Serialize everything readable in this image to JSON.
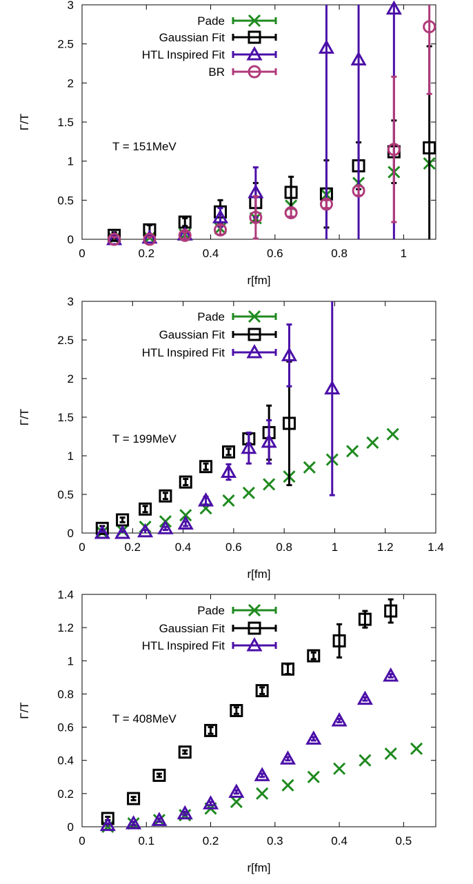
{
  "colors": {
    "pade": "#1f8a1f",
    "gauss": "#000000",
    "htl": "#4b0fa8",
    "br": "#b03a7a"
  },
  "chart_data": [
    {
      "type": "scatter",
      "annotation": "T = 151MeV",
      "xlabel": "r[fm]",
      "ylabel": "Γ/T",
      "xlim": [
        0,
        1.1
      ],
      "ylim": [
        0,
        3
      ],
      "xticks": [
        0,
        0.2,
        0.4,
        0.6,
        0.8,
        1
      ],
      "xtick_labels": [
        "0",
        "0.2",
        "0.4",
        "0.6",
        "0.8",
        "1"
      ],
      "yticks": [
        0,
        0.5,
        1,
        1.5,
        2,
        2.5,
        3
      ],
      "ytick_labels": [
        "0",
        "0.5",
        "1",
        "1.5",
        "2",
        "2.5",
        "3"
      ],
      "legend": "top-left",
      "series": [
        {
          "name": "Pade",
          "marker": "x",
          "color": "#1f8a1f",
          "points": [
            [
              0.1,
              0.01
            ],
            [
              0.21,
              0.02
            ],
            [
              0.32,
              0.06
            ],
            [
              0.43,
              0.14
            ],
            [
              0.54,
              0.27
            ],
            [
              0.65,
              0.43
            ],
            [
              0.76,
              0.57
            ],
            [
              0.86,
              0.72
            ],
            [
              0.97,
              0.86
            ],
            [
              1.08,
              0.97
            ]
          ]
        },
        {
          "name": "Gaussian Fit",
          "marker": "square",
          "color": "#000000",
          "points": [
            [
              0.1,
              0.05,
              0.04
            ],
            [
              0.21,
              0.12,
              0.06
            ],
            [
              0.32,
              0.22,
              0.05
            ],
            [
              0.43,
              0.35,
              0.15
            ],
            [
              0.54,
              0.47,
              0.25
            ],
            [
              0.65,
              0.6,
              0.2
            ],
            [
              0.76,
              0.58,
              0.43
            ],
            [
              0.86,
              0.94,
              0.3
            ],
            [
              0.97,
              1.12,
              0.4
            ],
            [
              1.08,
              1.17,
              1.3
            ]
          ]
        },
        {
          "name": "HTL Inspired Fit",
          "marker": "triangle",
          "color": "#4b0fa8",
          "points": [
            [
              0.1,
              0.0,
              0.03
            ],
            [
              0.21,
              0.02,
              0.04
            ],
            [
              0.32,
              0.06,
              0.05
            ],
            [
              0.43,
              0.28,
              0.12
            ],
            [
              0.54,
              0.6,
              0.32
            ],
            [
              0.76,
              2.45,
              3.0
            ],
            [
              0.86,
              2.3,
              3.0
            ],
            [
              0.97,
              2.95,
              3.0
            ]
          ]
        },
        {
          "name": "BR",
          "marker": "circle",
          "color": "#b03a7a",
          "points": [
            [
              0.1,
              0.0,
              0.03
            ],
            [
              0.21,
              0.0,
              0.03
            ],
            [
              0.32,
              0.05,
              0.04
            ],
            [
              0.43,
              0.12,
              0.06
            ],
            [
              0.54,
              0.28,
              0.27
            ],
            [
              0.65,
              0.34,
              0.05
            ],
            [
              0.76,
              0.45,
              0.05
            ],
            [
              0.86,
              0.62,
              0.06
            ],
            [
              0.97,
              1.15,
              0.93
            ],
            [
              1.08,
              2.72,
              0.86
            ]
          ]
        }
      ]
    },
    {
      "type": "scatter",
      "annotation": "T = 199MeV",
      "xlabel": "r[fm]",
      "ylabel": "Γ/T",
      "xlim": [
        0,
        1.4
      ],
      "ylim": [
        0,
        3
      ],
      "xticks": [
        0,
        0.2,
        0.4,
        0.6,
        0.8,
        1,
        1.2,
        1.4
      ],
      "xtick_labels": [
        "0",
        "0.2",
        "0.4",
        "0.6",
        "0.8",
        "1",
        "1.2",
        "1.4"
      ],
      "yticks": [
        0,
        0.5,
        1,
        1.5,
        2,
        2.5,
        3
      ],
      "ytick_labels": [
        "0",
        "0.5",
        "1",
        "1.5",
        "2",
        "2.5",
        "3"
      ],
      "legend": "top-left",
      "series": [
        {
          "name": "Pade",
          "marker": "x",
          "color": "#1f8a1f",
          "points": [
            [
              0.08,
              0.01
            ],
            [
              0.16,
              0.03
            ],
            [
              0.25,
              0.08
            ],
            [
              0.33,
              0.15
            ],
            [
              0.41,
              0.23
            ],
            [
              0.49,
              0.32
            ],
            [
              0.58,
              0.42
            ],
            [
              0.66,
              0.52
            ],
            [
              0.74,
              0.63
            ],
            [
              0.82,
              0.73
            ],
            [
              0.9,
              0.85
            ],
            [
              0.99,
              0.95
            ],
            [
              1.07,
              1.06
            ],
            [
              1.15,
              1.17
            ],
            [
              1.23,
              1.28
            ]
          ]
        },
        {
          "name": "Gaussian Fit",
          "marker": "square",
          "color": "#000000",
          "points": [
            [
              0.08,
              0.06,
              0.03
            ],
            [
              0.16,
              0.17,
              0.03
            ],
            [
              0.25,
              0.31,
              0.04
            ],
            [
              0.33,
              0.48,
              0.04
            ],
            [
              0.41,
              0.66,
              0.04
            ],
            [
              0.49,
              0.86,
              0.04
            ],
            [
              0.58,
              1.05,
              0.04
            ],
            [
              0.66,
              1.22,
              0.06
            ],
            [
              0.74,
              1.3,
              0.35
            ],
            [
              0.82,
              1.42,
              0.8
            ]
          ]
        },
        {
          "name": "HTL Inspired Fit",
          "marker": "triangle",
          "color": "#4b0fa8",
          "points": [
            [
              0.08,
              0.0,
              0.02
            ],
            [
              0.16,
              0.0,
              0.02
            ],
            [
              0.25,
              0.02,
              0.02
            ],
            [
              0.33,
              0.06,
              0.02
            ],
            [
              0.41,
              0.12,
              0.03
            ],
            [
              0.49,
              0.42,
              0.05
            ],
            [
              0.58,
              0.79,
              0.1
            ],
            [
              0.66,
              1.1,
              0.2
            ],
            [
              0.74,
              1.18,
              0.28
            ],
            [
              0.82,
              2.3,
              0.4
            ],
            [
              0.99,
              1.87,
              1.38
            ]
          ]
        }
      ]
    },
    {
      "type": "scatter",
      "annotation": "T = 408MeV",
      "xlabel": "r[fm]",
      "ylabel": "Γ/T",
      "xlim": [
        0,
        0.55
      ],
      "ylim": [
        0,
        1.4
      ],
      "xticks": [
        0,
        0.1,
        0.2,
        0.3,
        0.4,
        0.5
      ],
      "xtick_labels": [
        "0",
        "0.1",
        "0.2",
        "0.3",
        "0.4",
        "0.5"
      ],
      "yticks": [
        0,
        0.2,
        0.4,
        0.6,
        0.8,
        1,
        1.2,
        1.4
      ],
      "ytick_labels": [
        "0",
        "0.2",
        "0.4",
        "0.6",
        "0.8",
        "1",
        "1.2",
        "1.4"
      ],
      "legend": "top-left",
      "series": [
        {
          "name": "Pade",
          "marker": "x",
          "color": "#1f8a1f",
          "points": [
            [
              0.04,
              0.0
            ],
            [
              0.08,
              0.02
            ],
            [
              0.12,
              0.04
            ],
            [
              0.16,
              0.07
            ],
            [
              0.2,
              0.11
            ],
            [
              0.24,
              0.15
            ],
            [
              0.28,
              0.2
            ],
            [
              0.32,
              0.25
            ],
            [
              0.36,
              0.3
            ],
            [
              0.4,
              0.35
            ],
            [
              0.44,
              0.4
            ],
            [
              0.48,
              0.44
            ],
            [
              0.52,
              0.47
            ]
          ]
        },
        {
          "name": "Gaussian Fit",
          "marker": "square",
          "color": "#000000",
          "points": [
            [
              0.04,
              0.05,
              0.01
            ],
            [
              0.08,
              0.17,
              0.01
            ],
            [
              0.12,
              0.31,
              0.01
            ],
            [
              0.16,
              0.45,
              0.01
            ],
            [
              0.2,
              0.58,
              0.02
            ],
            [
              0.24,
              0.7,
              0.02
            ],
            [
              0.28,
              0.82,
              0.02
            ],
            [
              0.32,
              0.95,
              0.03
            ],
            [
              0.36,
              1.03,
              0.02
            ],
            [
              0.4,
              1.12,
              0.1
            ],
            [
              0.44,
              1.25,
              0.05
            ],
            [
              0.48,
              1.3,
              0.07
            ]
          ]
        },
        {
          "name": "HTL Inspired Fit",
          "marker": "triangle",
          "color": "#4b0fa8",
          "points": [
            [
              0.04,
              0.01,
              0.01
            ],
            [
              0.08,
              0.02,
              0.01
            ],
            [
              0.12,
              0.04,
              0.01
            ],
            [
              0.16,
              0.08,
              0.01
            ],
            [
              0.2,
              0.14,
              0.01
            ],
            [
              0.24,
              0.21,
              0.01
            ],
            [
              0.28,
              0.31,
              0.01
            ],
            [
              0.32,
              0.41,
              0.01
            ],
            [
              0.36,
              0.53,
              0.01
            ],
            [
              0.4,
              0.64,
              0.01
            ],
            [
              0.44,
              0.77,
              0.01
            ],
            [
              0.48,
              0.91,
              0.01
            ]
          ]
        }
      ]
    }
  ]
}
